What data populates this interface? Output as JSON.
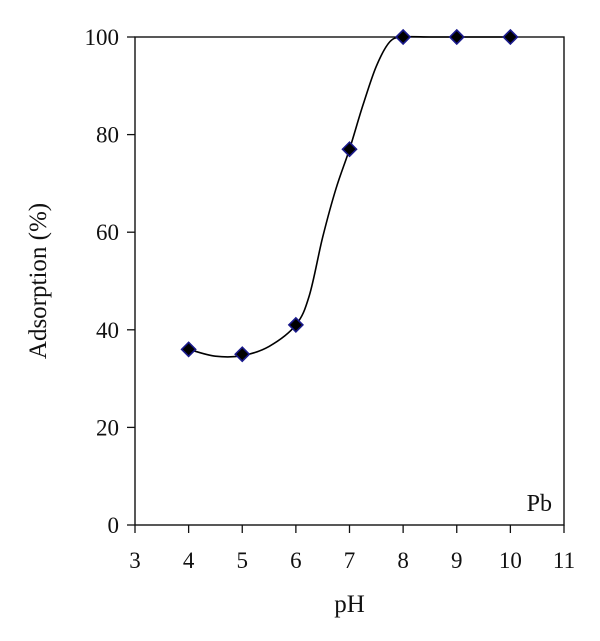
{
  "chart_data": {
    "type": "scatter",
    "xlabel": "pH",
    "ylabel": "Adsorption (%)",
    "annotation": "Pb",
    "xlim": [
      3,
      11
    ],
    "ylim": [
      0,
      100
    ],
    "x_ticks": [
      "3",
      "4",
      "5",
      "6",
      "7",
      "8",
      "9",
      "10",
      "11"
    ],
    "y_ticks": [
      "0",
      "20",
      "40",
      "60",
      "80",
      "100"
    ],
    "grid": false,
    "legend": "none",
    "fit_curve": "smooth sigmoid through points",
    "marker": "diamond",
    "marker_fill": "#000000",
    "marker_stroke": "#1a1a8c",
    "series": [
      {
        "x": [
          4,
          5,
          6,
          7,
          8,
          9,
          10
        ],
        "y": [
          36,
          35,
          41,
          77,
          100,
          100,
          100
        ]
      }
    ],
    "curve": {
      "x": [
        4,
        4.5,
        5,
        5.5,
        6,
        6.25,
        6.5,
        6.75,
        7,
        7.25,
        7.5,
        7.75,
        8,
        8.5,
        9,
        10
      ],
      "y": [
        36,
        34.6,
        34.7,
        36.6,
        41,
        47,
        59,
        69,
        77,
        86,
        94,
        99,
        100,
        100,
        100,
        100
      ]
    }
  }
}
